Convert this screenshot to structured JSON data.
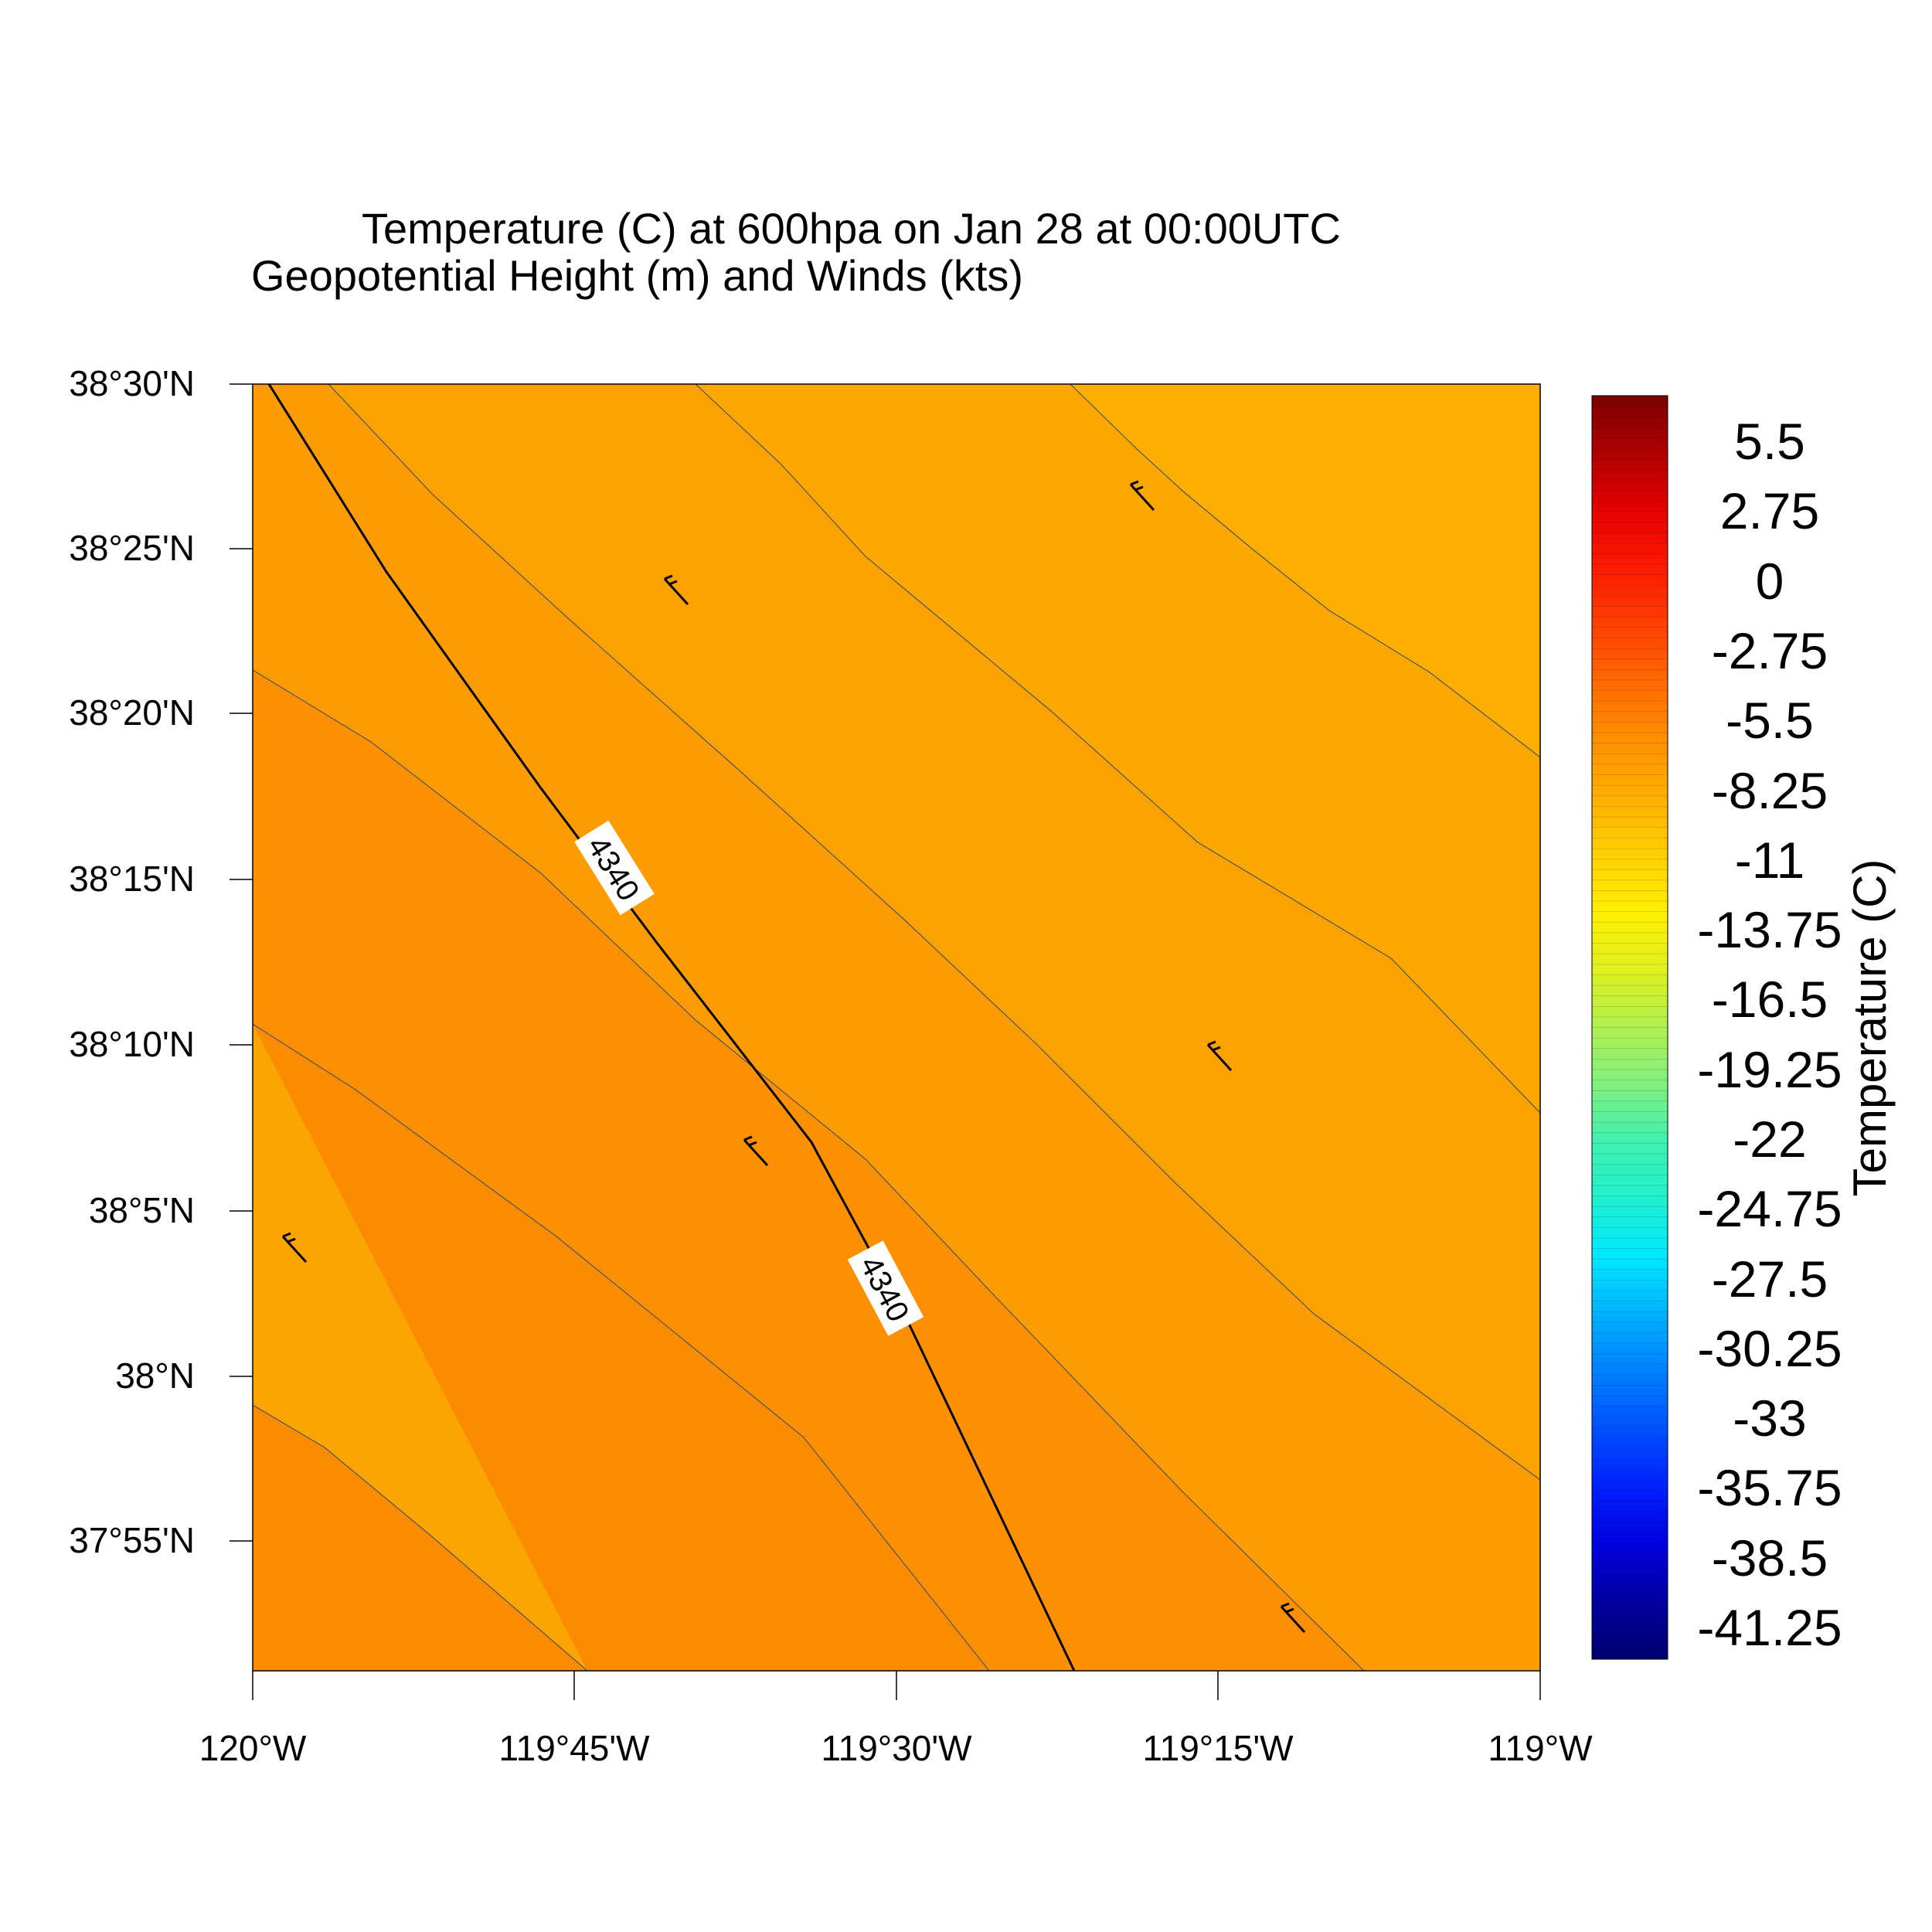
{
  "title": {
    "line1": "Temperature (C) at 600hpa on Jan 28 at 00:00UTC",
    "line2": "Geopotential Height (m) and Winds (kts)"
  },
  "map": {
    "lon_range": [
      "120°W",
      "119°W"
    ],
    "lat_range": [
      "37°51'N",
      "38°30'N"
    ],
    "x_ticks": [
      "120°W",
      "119°45'W",
      "119°30'W",
      "119°15'W",
      "119°W"
    ],
    "y_ticks": [
      "38°30'N",
      "38°25'N",
      "38°20'N",
      "38°15'N",
      "38°10'N",
      "38°5'N",
      "38°N",
      "37°55'N"
    ],
    "fill_colors": [
      "#fb8c00",
      "#fc9300",
      "#fc9c00",
      "#fca500",
      "#fdae00"
    ],
    "geopotential_contour": {
      "value": "4340",
      "labels": [
        "4340",
        "4340"
      ]
    },
    "wind_barbs": [
      {
        "lon": "119°40'W",
        "lat": "38°24'N",
        "speed_kts": 10
      },
      {
        "lon": "119°18'W",
        "lat": "38°27'N",
        "speed_kts": 10
      },
      {
        "lon": "119°14'W",
        "lat": "38°10'N",
        "speed_kts": 10
      },
      {
        "lon": "119°36'W",
        "lat": "38°7'N",
        "speed_kts": 10
      },
      {
        "lon": "119°58'W",
        "lat": "38°4'N",
        "speed_kts": 10
      },
      {
        "lon": "119°11'W",
        "lat": "37°53'N",
        "speed_kts": 10
      }
    ]
  },
  "colorbar": {
    "title": "Temperature (C)",
    "labels": [
      "5.5",
      "2.75",
      "0",
      "-2.75",
      "-5.5",
      "-8.25",
      "-11",
      "-13.75",
      "-16.5",
      "-19.25",
      "-22",
      "-24.75",
      "-27.5",
      "-30.25",
      "-33",
      "-35.75",
      "-38.5",
      "-41.25"
    ],
    "gradient_stops": [
      "#7a0000",
      "#b00000",
      "#e60000",
      "#ff1a00",
      "#ff4000",
      "#ff6a00",
      "#ff9000",
      "#ffb000",
      "#ffd000",
      "#fff000",
      "#e0f020",
      "#b0f050",
      "#80f080",
      "#40f0b0",
      "#20f0d0",
      "#00e8ff",
      "#00b0ff",
      "#0080ff",
      "#0050ff",
      "#0020ff",
      "#0000e0",
      "#0000a0",
      "#000070"
    ]
  }
}
